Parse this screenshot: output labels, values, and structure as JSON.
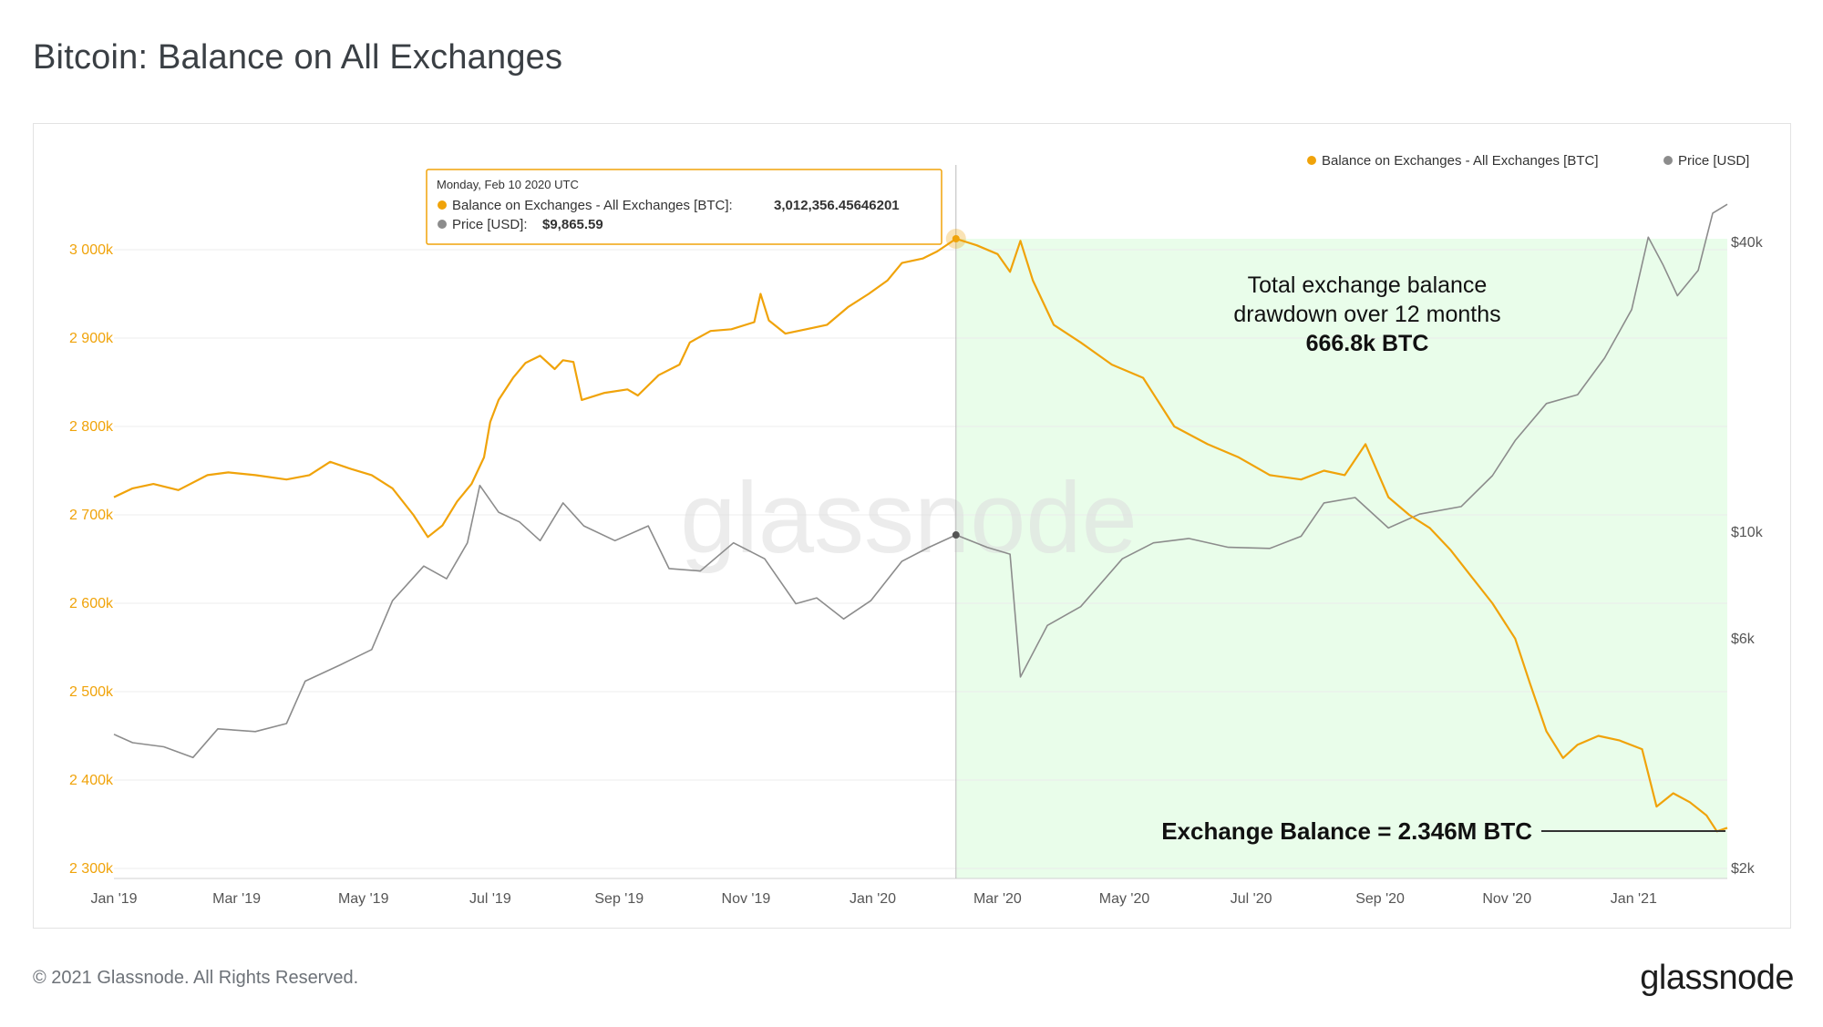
{
  "page": {
    "title": "Bitcoin: Balance on All Exchanges",
    "copyright": "© 2021 Glassnode. All Rights Reserved.",
    "logo": "glassnode",
    "watermark": "glassnode"
  },
  "tooltip": {
    "date": "Monday, Feb 10 2020 UTC",
    "balance_label": "Balance on Exchanges - All Exchanges [BTC]:",
    "balance_value": "3,012,356.45646201",
    "price_label": "Price [USD]:",
    "price_value": "$9,865.59"
  },
  "annotations": {
    "drawdown_line1": "Total exchange balance",
    "drawdown_line2": "drawdown over 12 months",
    "drawdown_value": "666.8k BTC",
    "current_balance": "Exchange Balance = 2.346M BTC"
  },
  "colors": {
    "balance": "#f0a30a",
    "price": "#8c8c8c",
    "highlight": "#e9fdea",
    "grid": "#ececec",
    "axis_text": "#f0a30a",
    "text": "#555555"
  },
  "chart_data": {
    "type": "line",
    "title": "Bitcoin: Balance on All Exchanges",
    "x_range": [
      "2019-01-01",
      "2021-02-15"
    ],
    "x_ticks": [
      "Jan '19",
      "Mar '19",
      "May '19",
      "Jul '19",
      "Sep '19",
      "Nov '19",
      "Jan '20",
      "Mar '20",
      "May '20",
      "Jul '20",
      "Sep '20",
      "Nov '20",
      "Jan '21"
    ],
    "y_left_ticks": [
      {
        "value": 3000000,
        "label": "3 000k"
      },
      {
        "value": 2900000,
        "label": "2 900k"
      },
      {
        "value": 2800000,
        "label": "2 800k"
      },
      {
        "value": 2700000,
        "label": "2 700k"
      },
      {
        "value": 2600000,
        "label": "2 600k"
      },
      {
        "value": 2500000,
        "label": "2 500k"
      },
      {
        "value": 2400000,
        "label": "2 400k"
      },
      {
        "value": 2300000,
        "label": "2 300k"
      }
    ],
    "y_left_range": [
      2300000,
      3000000
    ],
    "y_right_ticks": [
      {
        "value": 40000,
        "label": "$40k"
      },
      {
        "value": 10000,
        "label": "$10k"
      },
      {
        "value": 6000,
        "label": "$6k"
      },
      {
        "value": 2000,
        "label": "$2k"
      }
    ],
    "y_right_scale": "log",
    "legend": [
      "Balance on Exchanges - All Exchanges [BTC]",
      "Price [USD]"
    ],
    "legend_position": "top-right",
    "grid": true,
    "highlight_range": [
      "2020-02-10",
      "2021-02-15"
    ],
    "marker_date": "2020-02-10",
    "series": [
      {
        "name": "Balance on Exchanges - All Exchanges [BTC]",
        "axis": "left",
        "points": [
          [
            "2019-01-01",
            2720000
          ],
          [
            "2019-01-10",
            2730000
          ],
          [
            "2019-01-20",
            2735000
          ],
          [
            "2019-02-01",
            2728000
          ],
          [
            "2019-02-15",
            2745000
          ],
          [
            "2019-02-25",
            2748000
          ],
          [
            "2019-03-10",
            2745000
          ],
          [
            "2019-03-25",
            2740000
          ],
          [
            "2019-04-05",
            2745000
          ],
          [
            "2019-04-15",
            2760000
          ],
          [
            "2019-04-25",
            2752000
          ],
          [
            "2019-05-05",
            2745000
          ],
          [
            "2019-05-15",
            2730000
          ],
          [
            "2019-05-25",
            2700000
          ],
          [
            "2019-06-01",
            2675000
          ],
          [
            "2019-06-08",
            2688000
          ],
          [
            "2019-06-15",
            2715000
          ],
          [
            "2019-06-22",
            2735000
          ],
          [
            "2019-06-28",
            2765000
          ],
          [
            "2019-07-01",
            2805000
          ],
          [
            "2019-07-05",
            2830000
          ],
          [
            "2019-07-12",
            2855000
          ],
          [
            "2019-07-18",
            2872000
          ],
          [
            "2019-07-25",
            2880000
          ],
          [
            "2019-08-01",
            2865000
          ],
          [
            "2019-08-05",
            2875000
          ],
          [
            "2019-08-10",
            2873000
          ],
          [
            "2019-08-14",
            2830000
          ],
          [
            "2019-08-25",
            2838000
          ],
          [
            "2019-09-05",
            2842000
          ],
          [
            "2019-09-10",
            2835000
          ],
          [
            "2019-09-20",
            2858000
          ],
          [
            "2019-09-30",
            2870000
          ],
          [
            "2019-10-05",
            2895000
          ],
          [
            "2019-10-15",
            2908000
          ],
          [
            "2019-10-25",
            2910000
          ],
          [
            "2019-11-05",
            2918000
          ],
          [
            "2019-11-08",
            2950000
          ],
          [
            "2019-11-12",
            2920000
          ],
          [
            "2019-11-20",
            2905000
          ],
          [
            "2019-11-30",
            2910000
          ],
          [
            "2019-12-10",
            2915000
          ],
          [
            "2019-12-20",
            2935000
          ],
          [
            "2019-12-30",
            2950000
          ],
          [
            "2020-01-08",
            2965000
          ],
          [
            "2020-01-15",
            2985000
          ],
          [
            "2020-01-25",
            2990000
          ],
          [
            "2020-02-01",
            2998000
          ],
          [
            "2020-02-10",
            3012356
          ],
          [
            "2020-02-20",
            3005000
          ],
          [
            "2020-03-01",
            2995000
          ],
          [
            "2020-03-07",
            2975000
          ],
          [
            "2020-03-12",
            3010000
          ],
          [
            "2020-03-18",
            2965000
          ],
          [
            "2020-03-28",
            2915000
          ],
          [
            "2020-04-10",
            2895000
          ],
          [
            "2020-04-25",
            2870000
          ],
          [
            "2020-05-10",
            2855000
          ],
          [
            "2020-05-25",
            2800000
          ],
          [
            "2020-06-10",
            2780000
          ],
          [
            "2020-06-25",
            2765000
          ],
          [
            "2020-07-10",
            2745000
          ],
          [
            "2020-07-25",
            2740000
          ],
          [
            "2020-08-05",
            2750000
          ],
          [
            "2020-08-15",
            2745000
          ],
          [
            "2020-08-25",
            2780000
          ],
          [
            "2020-09-05",
            2720000
          ],
          [
            "2020-09-15",
            2700000
          ],
          [
            "2020-09-25",
            2685000
          ],
          [
            "2020-10-05",
            2660000
          ],
          [
            "2020-10-15",
            2630000
          ],
          [
            "2020-10-25",
            2600000
          ],
          [
            "2020-11-05",
            2560000
          ],
          [
            "2020-11-12",
            2510000
          ],
          [
            "2020-11-20",
            2455000
          ],
          [
            "2020-11-28",
            2425000
          ],
          [
            "2020-12-05",
            2440000
          ],
          [
            "2020-12-15",
            2450000
          ],
          [
            "2020-12-25",
            2445000
          ],
          [
            "2021-01-05",
            2435000
          ],
          [
            "2021-01-12",
            2370000
          ],
          [
            "2021-01-20",
            2385000
          ],
          [
            "2021-01-28",
            2375000
          ],
          [
            "2021-02-05",
            2360000
          ],
          [
            "2021-02-10",
            2342000
          ],
          [
            "2021-02-15",
            2346000
          ]
        ]
      },
      {
        "name": "Price [USD]",
        "axis": "right",
        "points": [
          [
            "2019-01-01",
            3800
          ],
          [
            "2019-01-10",
            3650
          ],
          [
            "2019-01-25",
            3580
          ],
          [
            "2019-02-08",
            3400
          ],
          [
            "2019-02-20",
            3900
          ],
          [
            "2019-03-10",
            3850
          ],
          [
            "2019-03-25",
            4000
          ],
          [
            "2019-04-03",
            4900
          ],
          [
            "2019-04-20",
            5300
          ],
          [
            "2019-05-05",
            5700
          ],
          [
            "2019-05-15",
            7200
          ],
          [
            "2019-05-30",
            8500
          ],
          [
            "2019-06-10",
            8000
          ],
          [
            "2019-06-20",
            9500
          ],
          [
            "2019-06-26",
            12500
          ],
          [
            "2019-07-05",
            11000
          ],
          [
            "2019-07-15",
            10500
          ],
          [
            "2019-07-25",
            9600
          ],
          [
            "2019-08-05",
            11500
          ],
          [
            "2019-08-15",
            10300
          ],
          [
            "2019-08-30",
            9600
          ],
          [
            "2019-09-15",
            10300
          ],
          [
            "2019-09-25",
            8400
          ],
          [
            "2019-10-10",
            8300
          ],
          [
            "2019-10-26",
            9500
          ],
          [
            "2019-11-10",
            8800
          ],
          [
            "2019-11-25",
            7100
          ],
          [
            "2019-12-05",
            7300
          ],
          [
            "2019-12-18",
            6600
          ],
          [
            "2019-12-31",
            7200
          ],
          [
            "2020-01-15",
            8700
          ],
          [
            "2020-01-28",
            9300
          ],
          [
            "2020-02-10",
            9865
          ],
          [
            "2020-02-25",
            9300
          ],
          [
            "2020-03-07",
            9000
          ],
          [
            "2020-03-12",
            5000
          ],
          [
            "2020-03-25",
            6400
          ],
          [
            "2020-04-10",
            7000
          ],
          [
            "2020-04-30",
            8800
          ],
          [
            "2020-05-15",
            9500
          ],
          [
            "2020-06-01",
            9700
          ],
          [
            "2020-06-20",
            9300
          ],
          [
            "2020-07-10",
            9250
          ],
          [
            "2020-07-25",
            9800
          ],
          [
            "2020-08-05",
            11500
          ],
          [
            "2020-08-20",
            11800
          ],
          [
            "2020-09-05",
            10200
          ],
          [
            "2020-09-20",
            10900
          ],
          [
            "2020-10-10",
            11300
          ],
          [
            "2020-10-25",
            13100
          ],
          [
            "2020-11-05",
            15500
          ],
          [
            "2020-11-20",
            18500
          ],
          [
            "2020-12-05",
            19300
          ],
          [
            "2020-12-18",
            23000
          ],
          [
            "2020-12-31",
            29000
          ],
          [
            "2021-01-08",
            41000
          ],
          [
            "2021-01-15",
            36000
          ],
          [
            "2021-01-22",
            31000
          ],
          [
            "2021-02-01",
            35000
          ],
          [
            "2021-02-08",
            46000
          ],
          [
            "2021-02-15",
            48000
          ]
        ]
      }
    ]
  }
}
